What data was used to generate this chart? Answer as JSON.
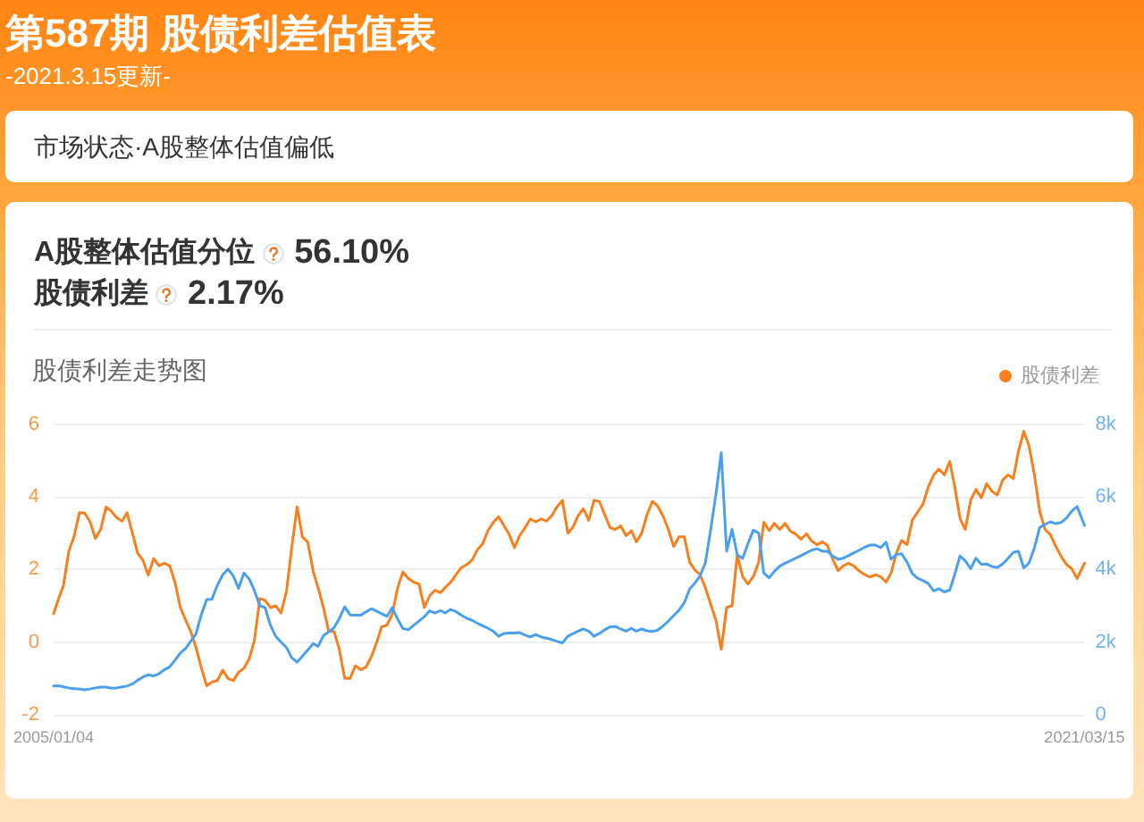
{
  "chart_data": {
    "type": "line",
    "title": "第587期 股债利差估值表",
    "subtitle": "-2021.3.15更新-",
    "annotations": [
      "市场状态·A股整体估值偏低",
      "A股整体估值分位",
      "56.10%",
      "股债利差",
      "2.17%",
      "股债利差走势图"
    ],
    "x": [
      "2005-01-04",
      "2005-02",
      "2005-03",
      "2005-04",
      "2005-05",
      "2005-06",
      "2005-07",
      "2005-08",
      "2005-09",
      "2005-10",
      "2005-11",
      "2005-12",
      "2006-01",
      "2006-02",
      "2006-03",
      "2006-04",
      "2006-05",
      "2006-06",
      "2006-07",
      "2006-08",
      "2006-09",
      "2006-10",
      "2006-11",
      "2006-12",
      "2007-01",
      "2007-02",
      "2007-03",
      "2007-04",
      "2007-05",
      "2007-06",
      "2007-07",
      "2007-08",
      "2007-09",
      "2007-10",
      "2007-11",
      "2007-12",
      "2008-01",
      "2008-02",
      "2008-03",
      "2008-04",
      "2008-05",
      "2008-06",
      "2008-07",
      "2008-08",
      "2008-09",
      "2008-10",
      "2008-11",
      "2008-12",
      "2009-01",
      "2009-02",
      "2009-03",
      "2009-04",
      "2009-05",
      "2009-06",
      "2009-07",
      "2009-08",
      "2009-09",
      "2009-10",
      "2009-11",
      "2009-12",
      "2010-01",
      "2010-02",
      "2010-03",
      "2010-04",
      "2010-05",
      "2010-06",
      "2010-07",
      "2010-08",
      "2010-09",
      "2010-10",
      "2010-11",
      "2010-12",
      "2011-01",
      "2011-02",
      "2011-03",
      "2011-04",
      "2011-05",
      "2011-06",
      "2011-07",
      "2011-08",
      "2011-09",
      "2011-10",
      "2011-11",
      "2011-12",
      "2012-01",
      "2012-02",
      "2012-03",
      "2012-04",
      "2012-05",
      "2012-06",
      "2012-07",
      "2012-08",
      "2012-09",
      "2012-10",
      "2012-11",
      "2012-12",
      "2013-01",
      "2013-02",
      "2013-03",
      "2013-04",
      "2013-05",
      "2013-06",
      "2013-07",
      "2013-08",
      "2013-09",
      "2013-10",
      "2013-11",
      "2013-12",
      "2014-01",
      "2014-02",
      "2014-03",
      "2014-04",
      "2014-05",
      "2014-06",
      "2014-07",
      "2014-08",
      "2014-09",
      "2014-10",
      "2014-11",
      "2014-12",
      "2015-01",
      "2015-02",
      "2015-03",
      "2015-04",
      "2015-05",
      "2015-06",
      "2015-07",
      "2015-08",
      "2015-09",
      "2015-10",
      "2015-11",
      "2015-12",
      "2016-01",
      "2016-02",
      "2016-03",
      "2016-04",
      "2016-05",
      "2016-06",
      "2016-07",
      "2016-08",
      "2016-09",
      "2016-10",
      "2016-11",
      "2016-12",
      "2017-01",
      "2017-02",
      "2017-03",
      "2017-04",
      "2017-05",
      "2017-06",
      "2017-07",
      "2017-08",
      "2017-09",
      "2017-10",
      "2017-11",
      "2017-12",
      "2018-01",
      "2018-02",
      "2018-03",
      "2018-04",
      "2018-05",
      "2018-06",
      "2018-07",
      "2018-08",
      "2018-09",
      "2018-10",
      "2018-11",
      "2018-12",
      "2019-01",
      "2019-02",
      "2019-03",
      "2019-04",
      "2019-05",
      "2019-06",
      "2019-07",
      "2019-08",
      "2019-09",
      "2019-10",
      "2019-11",
      "2019-12",
      "2020-01",
      "2020-02",
      "2020-03",
      "2020-04",
      "2020-05",
      "2020-06",
      "2020-07",
      "2020-08",
      "2020-09",
      "2020-10",
      "2020-11",
      "2020-12",
      "2021-01",
      "2021-02",
      "2021-03-15"
    ],
    "xlim": [
      "2005-01-04",
      "2021-03-15"
    ],
    "xticks": [
      {
        "value": "2005-01-04",
        "label": "2005/01/04"
      },
      {
        "value": "2021-03-15",
        "label": "2021/03/15"
      }
    ],
    "ylim": [
      -2,
      6
    ],
    "yticks": [
      -2,
      0,
      2,
      4,
      6
    ],
    "y2lim": [
      0,
      8000
    ],
    "y2ticks": [
      0,
      {
        "value": 2000,
        "label": "2k"
      },
      {
        "value": 4000,
        "label": "4k"
      },
      {
        "value": 6000,
        "label": "6k"
      },
      {
        "value": 8000,
        "label": "8k"
      }
    ],
    "grid": "y",
    "legend": "top right",
    "series": [
      {
        "name": "股债利差",
        "color": "#f77f1d",
        "values": [
          0.78,
          1.19,
          1.55,
          2.5,
          2.9,
          3.56,
          3.55,
          3.31,
          2.85,
          3.1,
          3.72,
          3.6,
          3.42,
          3.33,
          3.56,
          3.0,
          2.45,
          2.25,
          1.84,
          2.3,
          2.1,
          2.17,
          2.1,
          1.65,
          0.95,
          0.6,
          0.3,
          -0.15,
          -0.7,
          -1.2,
          -1.1,
          -1.06,
          -0.77,
          -1.0,
          -1.06,
          -0.83,
          -0.72,
          -0.45,
          0.05,
          1.2,
          1.15,
          0.95,
          1.0,
          0.8,
          1.4,
          2.6,
          3.72,
          2.9,
          2.75,
          1.95,
          1.5,
          0.95,
          0.3,
          0.29,
          -0.2,
          -1.0,
          -1.0,
          -0.65,
          -0.76,
          -0.69,
          -0.4,
          0.0,
          0.42,
          0.47,
          0.78,
          1.5,
          1.93,
          1.75,
          1.65,
          1.6,
          0.95,
          1.27,
          1.43,
          1.36,
          1.5,
          1.65,
          1.85,
          2.05,
          2.13,
          2.25,
          2.54,
          2.7,
          3.07,
          3.29,
          3.45,
          3.2,
          2.97,
          2.6,
          2.93,
          3.15,
          3.39,
          3.31,
          3.39,
          3.33,
          3.48,
          3.72,
          3.9,
          3.0,
          3.15,
          3.48,
          3.67,
          3.35,
          3.9,
          3.87,
          3.5,
          3.15,
          3.1,
          3.2,
          2.93,
          3.06,
          2.76,
          3.0,
          3.5,
          3.87,
          3.75,
          3.47,
          3.1,
          2.63,
          2.9,
          2.9,
          2.2,
          1.98,
          1.86,
          1.5,
          1.05,
          0.6,
          -0.2,
          0.95,
          1.0,
          2.4,
          1.8,
          1.6,
          1.8,
          2.2,
          3.3,
          3.07,
          3.27,
          3.1,
          3.27,
          3.05,
          2.97,
          2.83,
          2.98,
          2.78,
          2.68,
          2.76,
          2.66,
          2.28,
          1.97,
          2.1,
          2.17,
          2.09,
          1.95,
          1.86,
          1.79,
          1.85,
          1.8,
          1.65,
          1.9,
          2.45,
          2.8,
          2.68,
          3.35,
          3.58,
          3.8,
          4.27,
          4.6,
          4.76,
          4.6,
          4.97,
          4.3,
          3.4,
          3.1,
          3.9,
          4.2,
          3.97,
          4.36,
          4.15,
          4.05,
          4.45,
          4.6,
          4.5,
          5.25,
          5.8,
          5.4,
          4.6,
          3.6,
          3.1,
          2.95,
          2.64,
          2.36,
          2.14,
          2.02,
          1.75,
          2.17
        ]
      },
      {
        "color": "#4aa0ee",
        "axis": "y2",
        "values": [
          790,
          800,
          770,
          740,
          720,
          710,
          690,
          710,
          740,
          760,
          760,
          730,
          740,
          770,
          790,
          850,
          950,
          1040,
          1100,
          1070,
          1130,
          1240,
          1320,
          1500,
          1700,
          1830,
          2020,
          2230,
          2750,
          3170,
          3180,
          3560,
          3850,
          4010,
          3820,
          3480,
          3900,
          3730,
          3420,
          3000,
          2950,
          2460,
          2160,
          2000,
          1850,
          1570,
          1450,
          1610,
          1780,
          1960,
          1880,
          2180,
          2280,
          2400,
          2650,
          2970,
          2750,
          2740,
          2740,
          2830,
          2920,
          2850,
          2780,
          2710,
          2950,
          2630,
          2370,
          2340,
          2460,
          2580,
          2700,
          2860,
          2800,
          2870,
          2800,
          2900,
          2840,
          2740,
          2660,
          2600,
          2520,
          2450,
          2380,
          2300,
          2160,
          2240,
          2250,
          2250,
          2260,
          2190,
          2140,
          2210,
          2140,
          2110,
          2070,
          2020,
          1980,
          2160,
          2230,
          2300,
          2360,
          2300,
          2160,
          2240,
          2340,
          2420,
          2430,
          2360,
          2300,
          2380,
          2300,
          2360,
          2310,
          2290,
          2330,
          2440,
          2580,
          2730,
          2880,
          3080,
          3460,
          3630,
          3820,
          4180,
          5080,
          6080,
          7210,
          4500,
          5100,
          4400,
          4300,
          4700,
          5080,
          5000,
          3900,
          3770,
          3950,
          4090,
          4170,
          4240,
          4310,
          4380,
          4460,
          4530,
          4570,
          4500,
          4500,
          4360,
          4280,
          4310,
          4380,
          4460,
          4530,
          4610,
          4670,
          4670,
          4600,
          4750,
          4280,
          4410,
          4430,
          4200,
          3890,
          3760,
          3690,
          3610,
          3410,
          3470,
          3380,
          3430,
          3850,
          4370,
          4240,
          4020,
          4310,
          4140,
          4150,
          4080,
          4050,
          4150,
          4300,
          4470,
          4500,
          4040,
          4180,
          4600,
          5150,
          5240,
          5310,
          5260,
          5290,
          5410,
          5600,
          5730,
          5210
        ]
      }
    ]
  }
}
